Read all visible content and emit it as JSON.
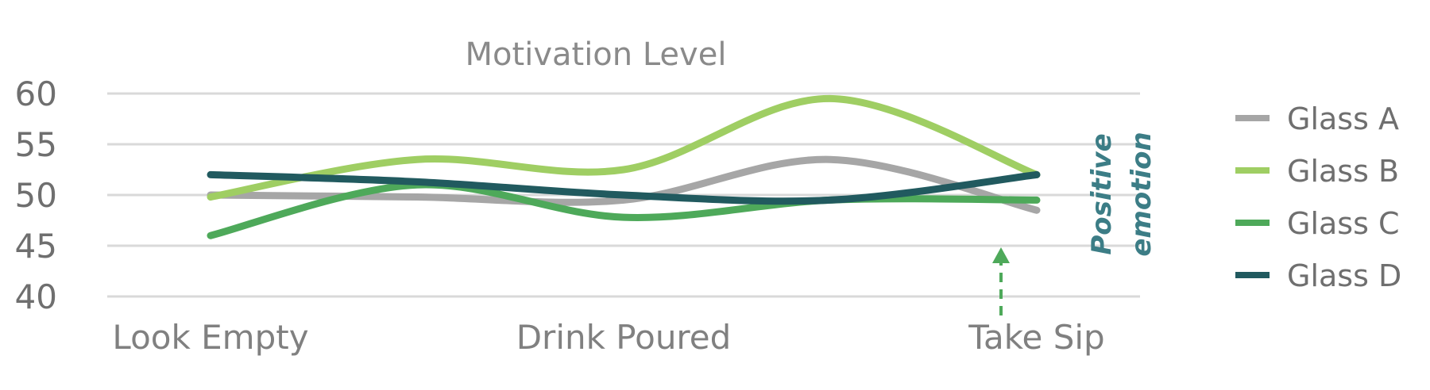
{
  "chart_data": {
    "type": "line",
    "title": "Motivation Level",
    "categories": [
      "Look Empty",
      "Drink Poured",
      "Take Sip"
    ],
    "ylim": [
      40,
      60
    ],
    "yticks": [
      40,
      45,
      50,
      55,
      60
    ],
    "grid": true,
    "legend_position": "right",
    "series": [
      {
        "name": "Glass A",
        "color": "#a6a6a6",
        "x": [
          0,
          0.5,
          1,
          1.5,
          2
        ],
        "values": [
          50,
          49.8,
          49.5,
          53.5,
          48.5
        ]
      },
      {
        "name": "Glass B",
        "color": "#9fce63",
        "x": [
          0,
          0.5,
          1,
          1.5,
          2
        ],
        "values": [
          49.8,
          53.5,
          52.5,
          59.5,
          52
        ]
      },
      {
        "name": "Glass C",
        "color": "#4ea95a",
        "x": [
          0,
          0.5,
          1,
          1.5,
          2
        ],
        "values": [
          46,
          51,
          47.8,
          49.5,
          49.5
        ]
      },
      {
        "name": "Glass D",
        "color": "#215a5f",
        "x": [
          0,
          0.5,
          1,
          1.5,
          2
        ],
        "values": [
          52,
          51.3,
          50,
          49.5,
          52
        ]
      }
    ],
    "annotation": {
      "text_lines": [
        "Positive",
        "emotion"
      ],
      "color": "#3c7d86",
      "arrow_color": "#4ea95a"
    }
  }
}
